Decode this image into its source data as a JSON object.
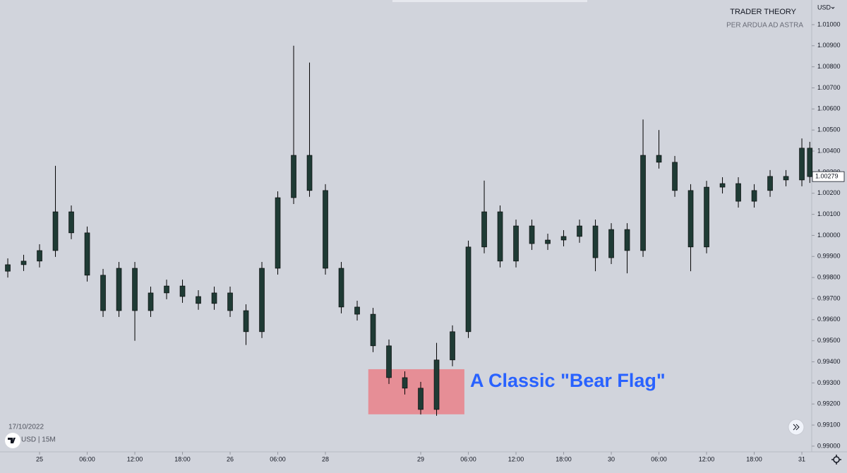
{
  "chart_data": {
    "type": "candlestick",
    "watermark_title": "TRADER THEORY",
    "watermark_subtitle": "PER ARDUA AD ASTRA",
    "currency": "USD",
    "date": "17/10/2022",
    "symbol_info": "USD | 15M",
    "annotation": "A Classic \"Bear Flag\"",
    "color": "#1f3b35",
    "x": [
      -4,
      -2,
      0,
      2,
      4,
      6,
      8,
      10,
      12,
      14,
      16,
      18,
      20,
      22,
      24,
      26,
      28,
      30,
      32,
      34,
      36,
      38,
      40,
      42,
      44,
      46,
      48,
      50,
      52,
      54,
      56,
      58,
      60,
      62,
      64,
      66,
      68,
      70,
      72,
      74,
      76,
      78,
      80,
      82,
      84,
      86,
      88,
      90,
      92,
      94,
      96,
      97
    ],
    "open": [
      0.9983,
      0.99861,
      0.99878,
      0.99928,
      1.00112,
      1.00012,
      0.99811,
      0.99643,
      0.99844,
      0.99643,
      0.99727,
      0.9976,
      0.9971,
      0.99677,
      0.99727,
      0.99643,
      0.99543,
      0.99844,
      1.00179,
      1.0038,
      1.00213,
      0.99844,
      0.9966,
      0.99626,
      0.99476,
      0.99325,
      0.99275,
      0.99174,
      0.99409,
      0.99543,
      0.99945,
      1.00112,
      0.99878,
      1.00045,
      0.99961,
      0.99978,
      0.99995,
      1.00045,
      0.99894,
      1.00028,
      0.99928,
      1.0038,
      1.00347,
      1.00213,
      0.99945,
      1.00229,
      1.00246,
      1.00162,
      1.00213,
      1.0028,
      1.00263,
      1.00414
    ],
    "high": [
      0.99891,
      0.99908,
      0.99958,
      1.0033,
      1.00142,
      1.00042,
      0.99841,
      0.99874,
      0.99874,
      0.99757,
      0.9979,
      0.9979,
      0.9974,
      0.99757,
      0.99757,
      0.99673,
      0.99874,
      1.00209,
      1.009,
      1.0082,
      1.00243,
      0.99874,
      0.9969,
      0.99656,
      0.99506,
      0.99355,
      0.99305,
      0.9949,
      0.99573,
      0.99975,
      1.0026,
      1.00142,
      1.00075,
      1.00075,
      1.00008,
      1.00025,
      1.00075,
      1.00075,
      1.00058,
      1.00058,
      1.0055,
      1.005,
      1.00377,
      1.00243,
      1.00259,
      1.00276,
      1.00276,
      1.00243,
      1.0031,
      1.0031,
      1.0046,
      1.00444
    ],
    "low": [
      0.998,
      0.99831,
      0.99848,
      0.99898,
      0.99982,
      0.99781,
      0.99613,
      0.99613,
      0.995,
      0.99613,
      0.99697,
      0.9968,
      0.99647,
      0.99647,
      0.99613,
      0.9948,
      0.99513,
      0.99814,
      1.00149,
      1.00183,
      0.99814,
      0.9963,
      0.99596,
      0.99446,
      0.99295,
      0.99245,
      0.9915,
      0.99144,
      0.99379,
      0.99513,
      0.99915,
      0.99848,
      0.99848,
      0.99931,
      0.99931,
      0.99948,
      0.99965,
      0.9983,
      0.99864,
      0.9982,
      0.99898,
      1.00317,
      1.00183,
      0.9983,
      0.99915,
      1.00199,
      1.00132,
      1.00132,
      1.00183,
      1.00233,
      1.00233,
      1.00249
    ],
    "close": [
      0.99861,
      0.99878,
      0.99928,
      1.00112,
      1.00012,
      0.99811,
      0.99643,
      0.99844,
      0.99643,
      0.99727,
      0.9976,
      0.9971,
      0.99677,
      0.99727,
      0.99643,
      0.99543,
      0.99844,
      1.00179,
      1.0038,
      1.00213,
      0.99844,
      0.9966,
      0.99626,
      0.99476,
      0.99325,
      0.99275,
      0.99174,
      0.99409,
      0.99543,
      0.99945,
      1.00112,
      0.99878,
      1.00045,
      0.99961,
      0.99978,
      0.99995,
      1.00045,
      0.99894,
      1.00028,
      0.99928,
      1.0038,
      1.00347,
      1.00213,
      0.99945,
      1.00229,
      1.00246,
      1.00162,
      1.00213,
      1.0028,
      1.00263,
      1.00414,
      1.00279
    ],
    "last_price": 1.00279,
    "highlight": {
      "xlim": [
        41.4,
        53.5
      ],
      "ylim": [
        0.99151,
        0.99365
      ],
      "color": "#e8868e"
    },
    "xlim": [
      -4.98,
      97.24
    ],
    "xticks": [
      {
        "value": 0,
        "label": "25"
      },
      {
        "value": 6,
        "label": "06:00"
      },
      {
        "value": 12,
        "label": "12:00"
      },
      {
        "value": 18,
        "label": "18:00"
      },
      {
        "value": 24,
        "label": "26"
      },
      {
        "value": 30,
        "label": "06:00"
      },
      {
        "value": 36,
        "label": "28"
      },
      {
        "value": 48,
        "label": "29"
      },
      {
        "value": 54,
        "label": "06:00"
      },
      {
        "value": 60,
        "label": "12:00"
      },
      {
        "value": 66,
        "label": "18:00"
      },
      {
        "value": 72,
        "label": "30"
      },
      {
        "value": 78,
        "label": "06:00"
      },
      {
        "value": 84,
        "label": "12:00"
      },
      {
        "value": 90,
        "label": "18:00"
      },
      {
        "value": 96,
        "label": "31"
      }
    ],
    "ylim": [
      0.98973,
      1.01117
    ],
    "yticks": [
      {
        "value": 0.99,
        "label": "0.99000"
      },
      {
        "value": 0.991,
        "label": "0.99100"
      },
      {
        "value": 0.992,
        "label": "0.99200"
      },
      {
        "value": 0.993,
        "label": "0.99300"
      },
      {
        "value": 0.994,
        "label": "0.99400"
      },
      {
        "value": 0.995,
        "label": "0.99500"
      },
      {
        "value": 0.996,
        "label": "0.99600"
      },
      {
        "value": 0.997,
        "label": "0.99700"
      },
      {
        "value": 0.998,
        "label": "0.99800"
      },
      {
        "value": 0.999,
        "label": "0.99900"
      },
      {
        "value": 1.0,
        "label": "1.00000"
      },
      {
        "value": 1.001,
        "label": "1.00100"
      },
      {
        "value": 1.002,
        "label": "1.00200"
      },
      {
        "value": 1.003,
        "label": "1.00300"
      },
      {
        "value": 1.004,
        "label": "1.00400"
      },
      {
        "value": 1.005,
        "label": "1.00500"
      },
      {
        "value": 1.006,
        "label": "1.00600"
      },
      {
        "value": 1.007,
        "label": "1.00700"
      },
      {
        "value": 1.008,
        "label": "1.00800"
      },
      {
        "value": 1.009,
        "label": "1.00900"
      },
      {
        "value": 1.01,
        "label": "1.01000"
      }
    ]
  }
}
